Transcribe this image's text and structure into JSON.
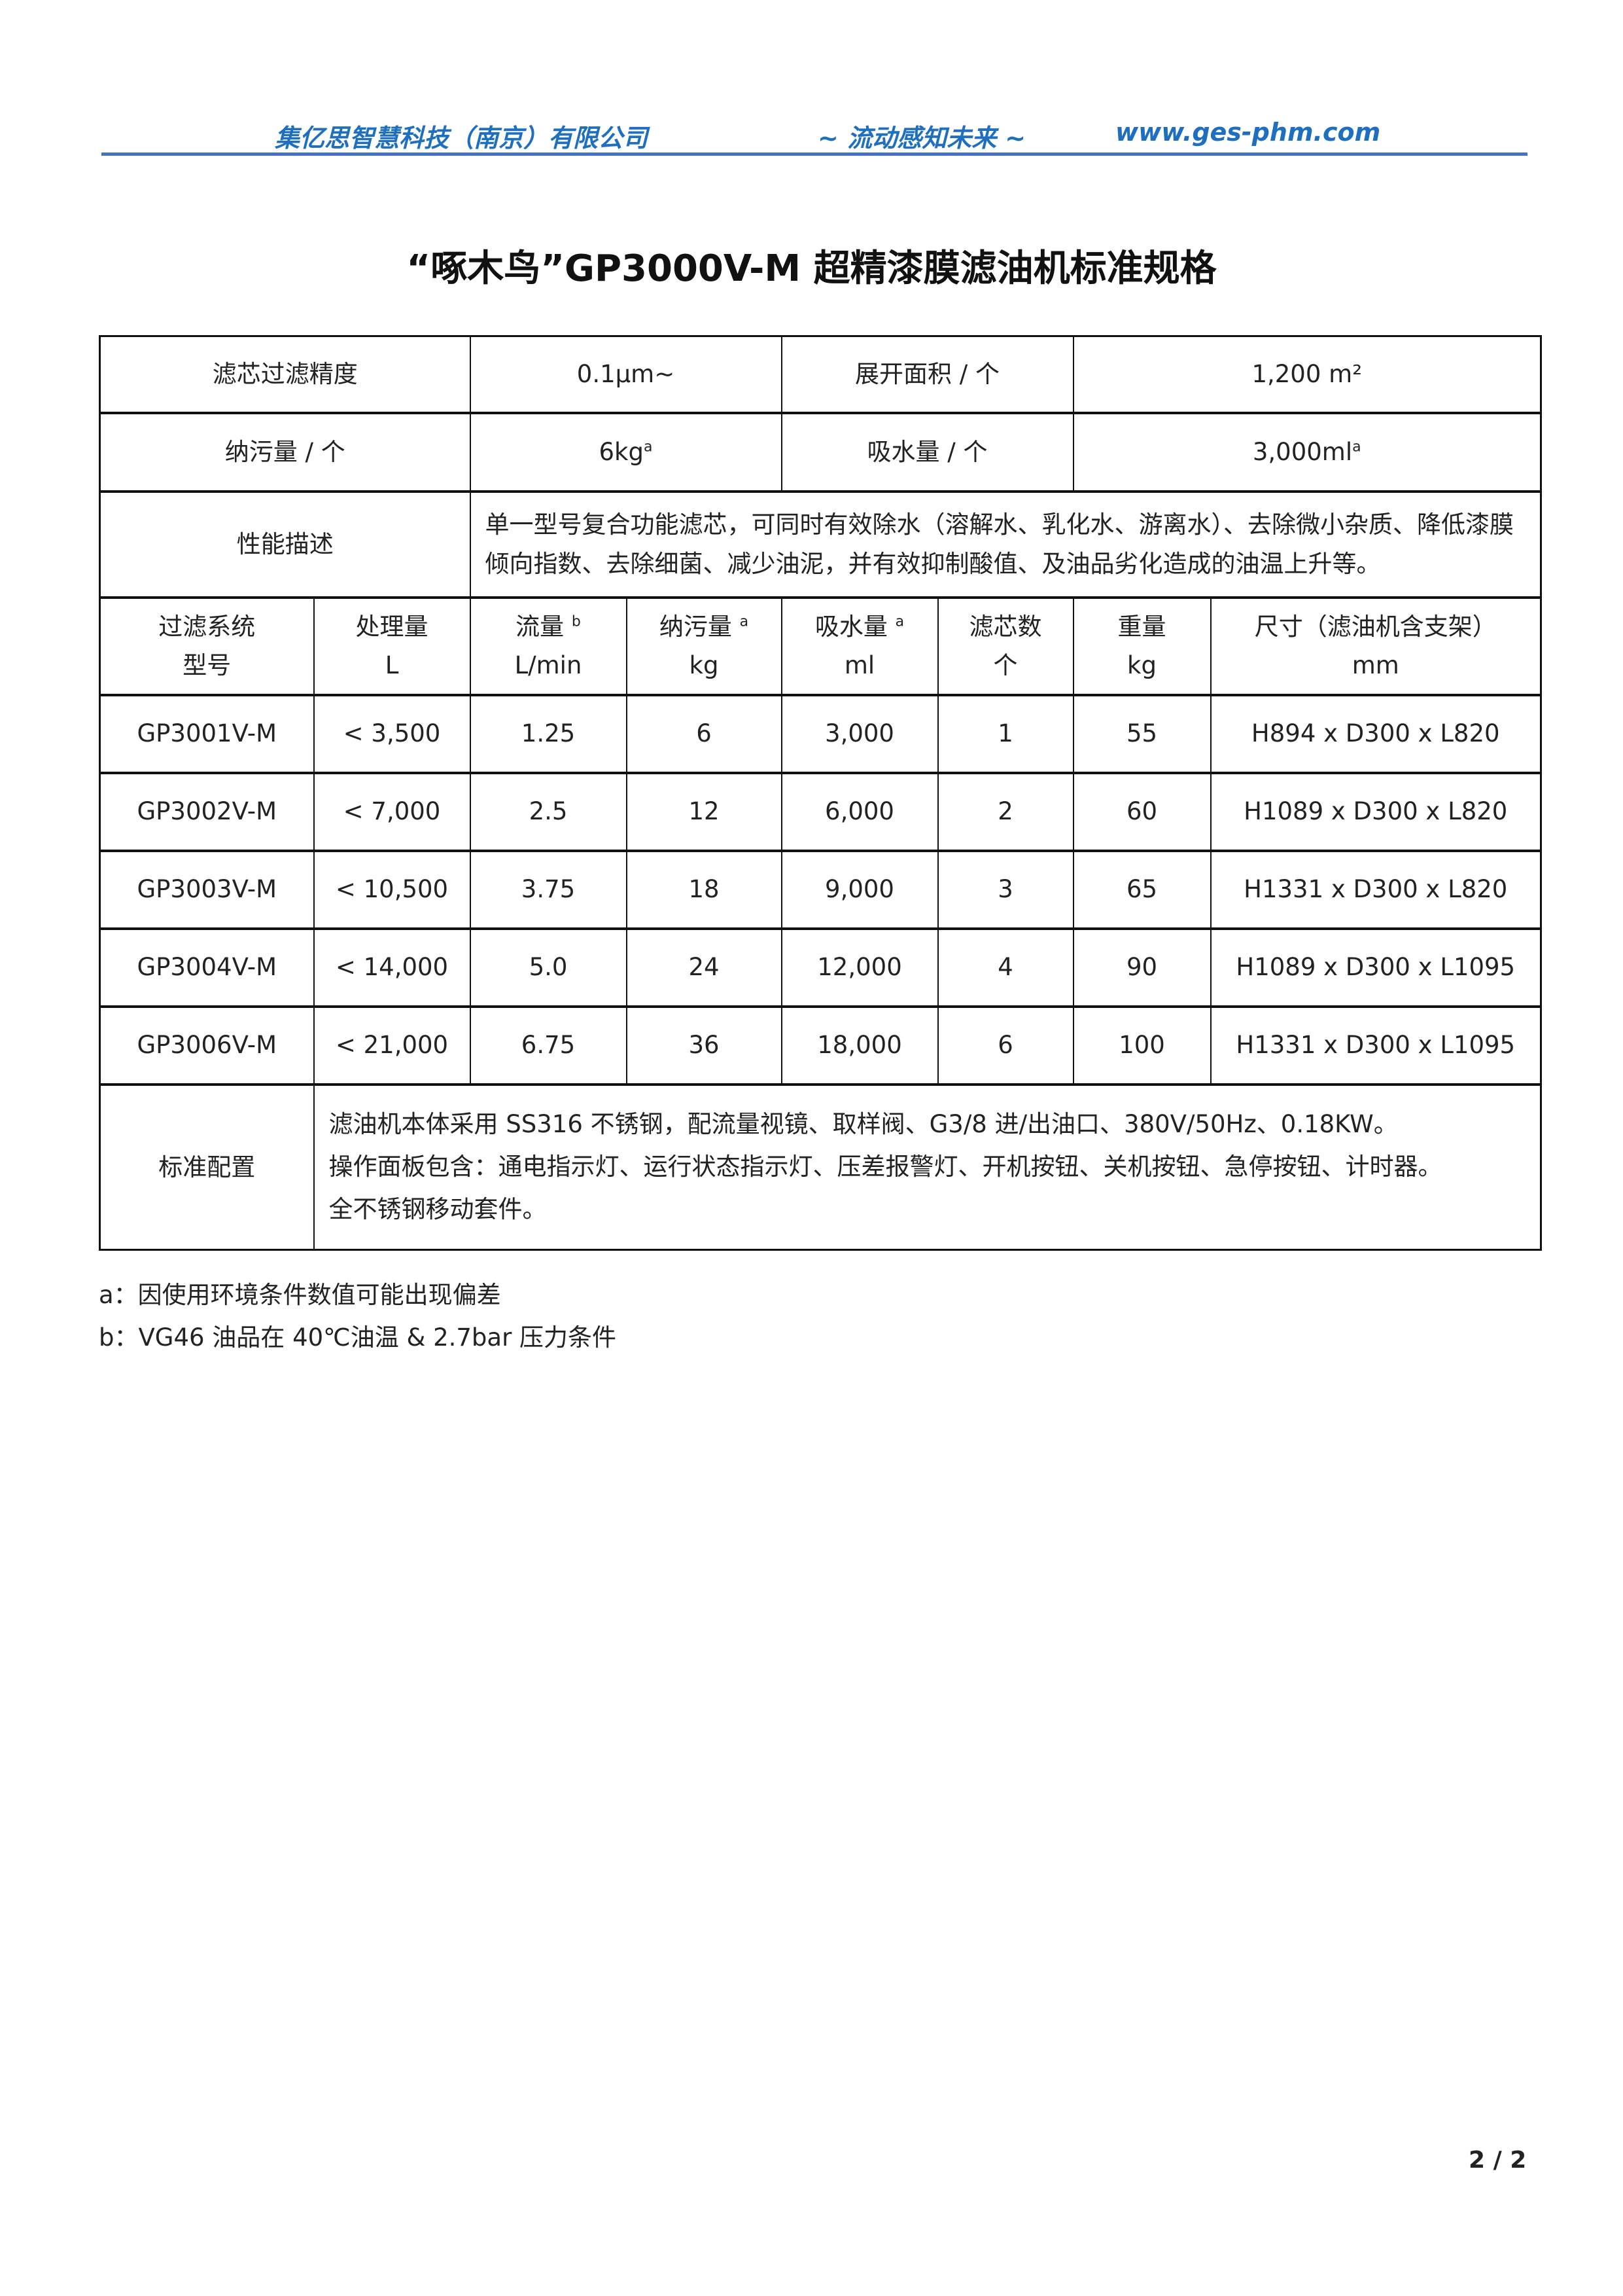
{
  "header": {
    "company": "集亿思智慧科技（南京）有限公司",
    "slogan": "~ 流动感知未来 ~",
    "website": "www.ges-phm.com",
    "line_color": "#4472c4",
    "text_color": "#1f6fc0"
  },
  "title": "“啄木鸟”GP3000V-M  超精漆膜滤油机标准规格",
  "summary": {
    "precision_label": "滤芯过滤精度",
    "precision_value": "0.1μm~",
    "area_label": "展开面积 / 个",
    "area_value": "1,200 m²",
    "dirt_label": "纳污量 / 个",
    "dirt_value": "6kg",
    "dirt_sup": "a",
    "water_label": "吸水量 / 个",
    "water_value": "3,000ml",
    "water_sup": "a",
    "perf_label": "性能描述",
    "perf_text": "单一型号复合功能滤芯，可同时有效除水（溶解水、乳化水、游离水）、去除微小杂质、降低漆膜倾向指数、去除细菌、减少油泥，并有效抑制酸值、及油品劣化造成的油温上升等。"
  },
  "columns": [
    {
      "l1": "过滤系统",
      "l2": "型号",
      "sup": ""
    },
    {
      "l1": "处理量",
      "l2": "L",
      "sup": ""
    },
    {
      "l1": "流量",
      "l2": "L/min",
      "sup": "b"
    },
    {
      "l1": "纳污量",
      "l2": "kg",
      "sup": "a"
    },
    {
      "l1": "吸水量",
      "l2": "ml",
      "sup": "a"
    },
    {
      "l1": "滤芯数",
      "l2": "个",
      "sup": ""
    },
    {
      "l1": "重量",
      "l2": "kg",
      "sup": ""
    },
    {
      "l1": "尺寸（滤油机含支架）",
      "l2": "mm",
      "sup": ""
    }
  ],
  "rows": [
    [
      "GP3001V-M",
      "< 3,500",
      "1.25",
      "6",
      "3,000",
      "1",
      "55",
      "H894 x D300 x L820"
    ],
    [
      "GP3002V-M",
      "< 7,000",
      "2.5",
      "12",
      "6,000",
      "2",
      "60",
      "H1089 x D300 x L820"
    ],
    [
      "GP3003V-M",
      "< 10,500",
      "3.75",
      "18",
      "9,000",
      "3",
      "65",
      "H1331 x D300 x L820"
    ],
    [
      "GP3004V-M",
      "< 14,000",
      "5.0",
      "24",
      "12,000",
      "4",
      "90",
      "H1089 x D300 x L1095"
    ],
    [
      "GP3006V-M",
      "< 21,000",
      "6.75",
      "36",
      "18,000",
      "6",
      "100",
      "H1331 x D300 x L1095"
    ]
  ],
  "config": {
    "label": "标准配置",
    "lines": [
      "滤油机本体采用 SS316 不锈钢，配流量视镜、取样阀、G3/8 进/出油口、380V/50Hz、0.18KW。",
      "操作面板包含：通电指示灯、运行状态指示灯、压差报警灯、开机按钮、关机按钮、急停按钮、计时器。",
      "全不锈钢移动套件。"
    ]
  },
  "footnotes": [
    "a：因使用环境条件数值可能出现偏差",
    "b：VG46  油品在 40℃油温  & 2.7bar 压力条件"
  ],
  "page": "2 / 2"
}
